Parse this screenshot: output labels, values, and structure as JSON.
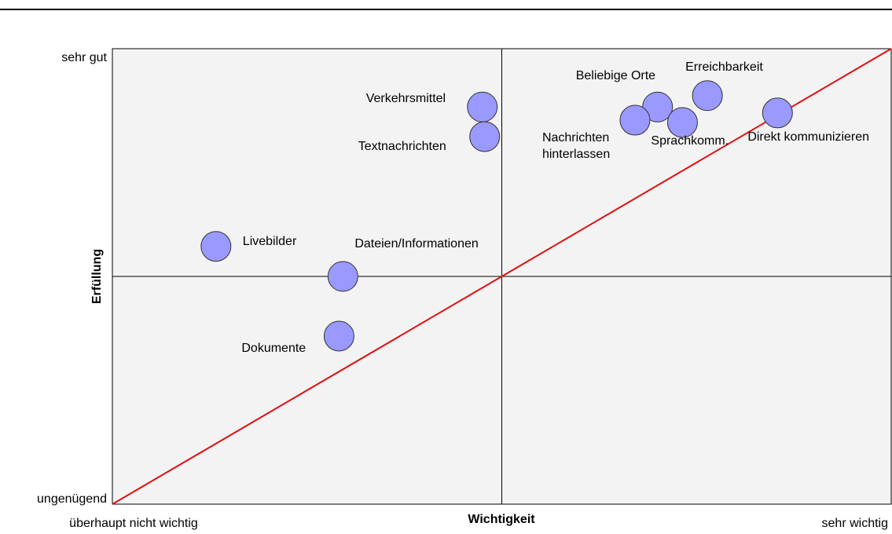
{
  "chart_data": {
    "type": "scatter",
    "x_label": "Wichtigkeit",
    "y_label": "Erfüllung",
    "xlim": [
      0,
      10
    ],
    "ylim": [
      0,
      10
    ],
    "xticks": [
      {
        "value": 0,
        "label": "überhaupt nicht wichtig"
      },
      {
        "value": 10,
        "label": "sehr wichtig"
      }
    ],
    "yticks": [
      {
        "value": 0,
        "label": "ungenügend"
      },
      {
        "value": 10,
        "label": "sehr gut"
      }
    ],
    "quadrant_lines": {
      "x": 5,
      "y": 5
    },
    "diagonal_color": "#e01010",
    "color": "#9999ff",
    "labels": [
      "Verkehrsmittel",
      "Textnachrichten",
      "Livebilder",
      "Dateien/Informationen",
      "Dokumente",
      "Beliebige Orte",
      "Nachrichten hinterlassen",
      "Sprachkomm.",
      "Erreichbarkeit",
      "Direkt kommunizieren"
    ],
    "x": [
      4.75,
      4.78,
      1.33,
      2.96,
      2.91,
      7.0,
      6.71,
      7.32,
      7.64,
      8.54
    ],
    "y": [
      8.72,
      8.07,
      5.66,
      5.0,
      3.69,
      8.72,
      8.43,
      8.38,
      8.97,
      8.59
    ]
  }
}
